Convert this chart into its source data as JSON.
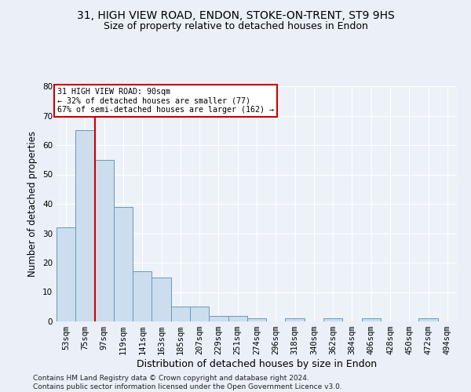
{
  "title1": "31, HIGH VIEW ROAD, ENDON, STOKE-ON-TRENT, ST9 9HS",
  "title2": "Size of property relative to detached houses in Endon",
  "xlabel": "Distribution of detached houses by size in Endon",
  "ylabel": "Number of detached properties",
  "categories": [
    "53sqm",
    "75sqm",
    "97sqm",
    "119sqm",
    "141sqm",
    "163sqm",
    "185sqm",
    "207sqm",
    "229sqm",
    "251sqm",
    "274sqm",
    "296sqm",
    "318sqm",
    "340sqm",
    "362sqm",
    "384sqm",
    "406sqm",
    "428sqm",
    "450sqm",
    "472sqm",
    "494sqm"
  ],
  "values": [
    32,
    65,
    55,
    39,
    17,
    15,
    5,
    5,
    2,
    2,
    1,
    0,
    1,
    0,
    1,
    0,
    1,
    0,
    0,
    1,
    0
  ],
  "bar_color": "#ccdded",
  "bar_edge_color": "#6699bb",
  "vline_x": 1.5,
  "vline_color": "#cc0000",
  "annotation_text": "31 HIGH VIEW ROAD: 90sqm\n← 32% of detached houses are smaller (77)\n67% of semi-detached houses are larger (162) →",
  "annotation_box_facecolor": "white",
  "annotation_box_edgecolor": "#cc0000",
  "ylim": [
    0,
    80
  ],
  "yticks": [
    0,
    10,
    20,
    30,
    40,
    50,
    60,
    70,
    80
  ],
  "footer": "Contains HM Land Registry data © Crown copyright and database right 2024.\nContains public sector information licensed under the Open Government Licence v3.0.",
  "bg_color": "#eaeff8",
  "plot_bg_color": "#edf1f8",
  "grid_color": "#ffffff",
  "title1_fontsize": 10,
  "title2_fontsize": 9,
  "xlabel_fontsize": 9,
  "ylabel_fontsize": 8.5,
  "tick_fontsize": 7.5,
  "footer_fontsize": 6.5
}
